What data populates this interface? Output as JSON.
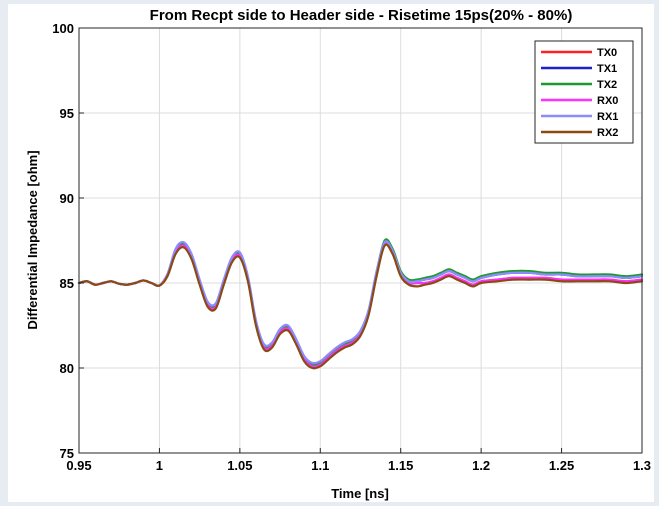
{
  "chart_data": {
    "type": "line",
    "title": "From Recpt side to Header side - Risetime 15ps(20% - 80%)",
    "xlabel": "Time [ns]",
    "ylabel": "Differential Impedance [ohm]",
    "xlim": [
      0.95,
      1.3
    ],
    "ylim": [
      75,
      100
    ],
    "xticks": [
      0.95,
      1,
      1.05,
      1.1,
      1.15,
      1.2,
      1.25,
      1.3
    ],
    "xtick_labels": [
      "0.95",
      "1",
      "1.05",
      "1.1",
      "1.15",
      "1.2",
      "1.25",
      "1.3"
    ],
    "yticks": [
      75,
      80,
      85,
      90,
      95,
      100
    ],
    "ytick_labels": [
      "75",
      "80",
      "85",
      "90",
      "95",
      "100"
    ],
    "grid": true,
    "legend_position": "top-right",
    "series": [
      {
        "name": "TX0",
        "color": "#ff2020",
        "x": [
          0.95,
          0.955,
          0.96,
          0.965,
          0.97,
          0.975,
          0.98,
          0.985,
          0.99,
          0.995,
          1.0,
          1.005,
          1.01,
          1.015,
          1.02,
          1.025,
          1.03,
          1.035,
          1.04,
          1.045,
          1.05,
          1.055,
          1.06,
          1.065,
          1.07,
          1.075,
          1.08,
          1.085,
          1.09,
          1.095,
          1.1,
          1.105,
          1.11,
          1.115,
          1.12,
          1.125,
          1.13,
          1.135,
          1.14,
          1.145,
          1.15,
          1.155,
          1.16,
          1.165,
          1.17,
          1.175,
          1.18,
          1.185,
          1.19,
          1.195,
          1.2,
          1.21,
          1.22,
          1.23,
          1.24,
          1.25,
          1.26,
          1.27,
          1.28,
          1.29,
          1.3
        ],
        "y": [
          85.0,
          85.1,
          84.9,
          85.0,
          85.1,
          84.95,
          84.9,
          85.0,
          85.15,
          85.0,
          84.85,
          85.5,
          86.8,
          87.2,
          86.5,
          85.0,
          83.7,
          83.6,
          85.0,
          86.3,
          86.6,
          85.2,
          82.6,
          81.2,
          81.3,
          82.1,
          82.3,
          81.5,
          80.5,
          80.1,
          80.2,
          80.6,
          81.0,
          81.3,
          81.5,
          82.0,
          83.2,
          85.5,
          87.3,
          86.8,
          85.5,
          85.0,
          85.0,
          85.0,
          85.1,
          85.3,
          85.5,
          85.3,
          85.1,
          84.9,
          85.1,
          85.2,
          85.3,
          85.3,
          85.3,
          85.2,
          85.2,
          85.2,
          85.2,
          85.1,
          85.2
        ]
      },
      {
        "name": "TX1",
        "color": "#1f1fd0",
        "x": [
          0.95,
          0.955,
          0.96,
          0.965,
          0.97,
          0.975,
          0.98,
          0.985,
          0.99,
          0.995,
          1.0,
          1.005,
          1.01,
          1.015,
          1.02,
          1.025,
          1.03,
          1.035,
          1.04,
          1.045,
          1.05,
          1.055,
          1.06,
          1.065,
          1.07,
          1.075,
          1.08,
          1.085,
          1.09,
          1.095,
          1.1,
          1.105,
          1.11,
          1.115,
          1.12,
          1.125,
          1.13,
          1.135,
          1.14,
          1.145,
          1.15,
          1.155,
          1.16,
          1.165,
          1.17,
          1.175,
          1.18,
          1.185,
          1.19,
          1.195,
          1.2,
          1.21,
          1.22,
          1.23,
          1.24,
          1.25,
          1.26,
          1.27,
          1.28,
          1.29,
          1.3
        ],
        "y": [
          85.0,
          85.1,
          84.9,
          85.0,
          85.1,
          84.95,
          84.9,
          85.0,
          85.15,
          85.0,
          84.85,
          85.5,
          86.9,
          87.3,
          86.6,
          85.1,
          83.8,
          83.7,
          85.1,
          86.4,
          86.7,
          85.3,
          82.7,
          81.3,
          81.4,
          82.2,
          82.4,
          81.6,
          80.6,
          80.2,
          80.3,
          80.7,
          81.1,
          81.4,
          81.6,
          82.1,
          83.3,
          85.6,
          87.4,
          86.9,
          85.6,
          85.1,
          85.1,
          85.2,
          85.3,
          85.5,
          85.7,
          85.5,
          85.3,
          85.1,
          85.3,
          85.5,
          85.6,
          85.6,
          85.5,
          85.5,
          85.4,
          85.4,
          85.4,
          85.3,
          85.4
        ]
      },
      {
        "name": "TX2",
        "color": "#1f9a2a",
        "x": [
          0.95,
          0.955,
          0.96,
          0.965,
          0.97,
          0.975,
          0.98,
          0.985,
          0.99,
          0.995,
          1.0,
          1.005,
          1.01,
          1.015,
          1.02,
          1.025,
          1.03,
          1.035,
          1.04,
          1.045,
          1.05,
          1.055,
          1.06,
          1.065,
          1.07,
          1.075,
          1.08,
          1.085,
          1.09,
          1.095,
          1.1,
          1.105,
          1.11,
          1.115,
          1.12,
          1.125,
          1.13,
          1.135,
          1.14,
          1.145,
          1.15,
          1.155,
          1.16,
          1.165,
          1.17,
          1.175,
          1.18,
          1.185,
          1.19,
          1.195,
          1.2,
          1.21,
          1.22,
          1.23,
          1.24,
          1.25,
          1.26,
          1.27,
          1.28,
          1.29,
          1.3
        ],
        "y": [
          85.0,
          85.1,
          84.9,
          85.0,
          85.1,
          84.95,
          84.9,
          85.0,
          85.15,
          85.0,
          84.85,
          85.5,
          86.9,
          87.3,
          86.6,
          85.1,
          83.8,
          83.7,
          85.1,
          86.4,
          86.7,
          85.3,
          82.7,
          81.3,
          81.4,
          82.2,
          82.4,
          81.6,
          80.6,
          80.2,
          80.3,
          80.7,
          81.1,
          81.4,
          81.6,
          82.1,
          83.3,
          85.6,
          87.5,
          87.0,
          85.7,
          85.2,
          85.2,
          85.3,
          85.4,
          85.6,
          85.8,
          85.6,
          85.4,
          85.2,
          85.4,
          85.6,
          85.7,
          85.7,
          85.6,
          85.6,
          85.5,
          85.5,
          85.5,
          85.4,
          85.5
        ]
      },
      {
        "name": "RX0",
        "color": "#ff30ff",
        "x": [
          0.95,
          0.955,
          0.96,
          0.965,
          0.97,
          0.975,
          0.98,
          0.985,
          0.99,
          0.995,
          1.0,
          1.005,
          1.01,
          1.015,
          1.02,
          1.025,
          1.03,
          1.035,
          1.04,
          1.045,
          1.05,
          1.055,
          1.06,
          1.065,
          1.07,
          1.075,
          1.08,
          1.085,
          1.09,
          1.095,
          1.1,
          1.105,
          1.11,
          1.115,
          1.12,
          1.125,
          1.13,
          1.135,
          1.14,
          1.145,
          1.15,
          1.155,
          1.16,
          1.165,
          1.17,
          1.175,
          1.18,
          1.185,
          1.19,
          1.195,
          1.2,
          1.21,
          1.22,
          1.23,
          1.24,
          1.25,
          1.26,
          1.27,
          1.28,
          1.29,
          1.3
        ],
        "y": [
          85.0,
          85.1,
          84.9,
          85.0,
          85.1,
          84.95,
          84.9,
          85.0,
          85.15,
          85.0,
          84.85,
          85.5,
          86.8,
          87.2,
          86.5,
          85.0,
          83.7,
          83.6,
          85.0,
          86.3,
          86.6,
          85.2,
          82.6,
          81.2,
          81.3,
          82.1,
          82.3,
          81.5,
          80.5,
          80.1,
          80.2,
          80.6,
          81.0,
          81.3,
          81.5,
          82.0,
          83.2,
          85.5,
          87.3,
          86.8,
          85.5,
          85.0,
          85.0,
          85.0,
          85.1,
          85.3,
          85.5,
          85.3,
          85.1,
          84.9,
          85.1,
          85.2,
          85.3,
          85.3,
          85.3,
          85.2,
          85.2,
          85.2,
          85.2,
          85.1,
          85.2
        ]
      },
      {
        "name": "RX1",
        "color": "#8c8cff",
        "x": [
          0.95,
          0.955,
          0.96,
          0.965,
          0.97,
          0.975,
          0.98,
          0.985,
          0.99,
          0.995,
          1.0,
          1.005,
          1.01,
          1.015,
          1.02,
          1.025,
          1.03,
          1.035,
          1.04,
          1.045,
          1.05,
          1.055,
          1.06,
          1.065,
          1.07,
          1.075,
          1.08,
          1.085,
          1.09,
          1.095,
          1.1,
          1.105,
          1.11,
          1.115,
          1.12,
          1.125,
          1.13,
          1.135,
          1.14,
          1.145,
          1.15,
          1.155,
          1.16,
          1.165,
          1.17,
          1.175,
          1.18,
          1.185,
          1.19,
          1.195,
          1.2,
          1.21,
          1.22,
          1.23,
          1.24,
          1.25,
          1.26,
          1.27,
          1.28,
          1.29,
          1.3
        ],
        "y": [
          85.0,
          85.1,
          84.9,
          85.0,
          85.1,
          84.95,
          84.9,
          85.0,
          85.15,
          85.0,
          84.85,
          85.5,
          87.0,
          87.4,
          86.7,
          85.2,
          83.9,
          83.8,
          85.2,
          86.5,
          86.8,
          85.4,
          82.8,
          81.4,
          81.5,
          82.3,
          82.5,
          81.7,
          80.7,
          80.3,
          80.4,
          80.8,
          81.2,
          81.5,
          81.7,
          82.2,
          83.4,
          85.7,
          87.4,
          86.9,
          85.6,
          85.1,
          85.1,
          85.2,
          85.3,
          85.5,
          85.7,
          85.5,
          85.3,
          85.1,
          85.3,
          85.5,
          85.6,
          85.6,
          85.5,
          85.5,
          85.4,
          85.4,
          85.4,
          85.3,
          85.4
        ]
      },
      {
        "name": "RX2",
        "color": "#8b4a12",
        "x": [
          0.95,
          0.955,
          0.96,
          0.965,
          0.97,
          0.975,
          0.98,
          0.985,
          0.99,
          0.995,
          1.0,
          1.005,
          1.01,
          1.015,
          1.02,
          1.025,
          1.03,
          1.035,
          1.04,
          1.045,
          1.05,
          1.055,
          1.06,
          1.065,
          1.07,
          1.075,
          1.08,
          1.085,
          1.09,
          1.095,
          1.1,
          1.105,
          1.11,
          1.115,
          1.12,
          1.125,
          1.13,
          1.135,
          1.14,
          1.145,
          1.15,
          1.155,
          1.16,
          1.165,
          1.17,
          1.175,
          1.18,
          1.185,
          1.19,
          1.195,
          1.2,
          1.21,
          1.22,
          1.23,
          1.24,
          1.25,
          1.26,
          1.27,
          1.28,
          1.29,
          1.3
        ],
        "y": [
          85.0,
          85.1,
          84.9,
          85.0,
          85.1,
          84.95,
          84.9,
          85.0,
          85.15,
          85.0,
          84.85,
          85.4,
          86.7,
          87.1,
          86.4,
          84.9,
          83.6,
          83.5,
          84.9,
          86.2,
          86.5,
          85.1,
          82.5,
          81.1,
          81.2,
          82.0,
          82.2,
          81.4,
          80.4,
          80.0,
          80.1,
          80.5,
          80.9,
          81.2,
          81.4,
          81.9,
          83.1,
          85.4,
          87.2,
          86.7,
          85.4,
          84.9,
          84.8,
          84.9,
          85.0,
          85.2,
          85.4,
          85.2,
          85.0,
          84.8,
          85.0,
          85.1,
          85.2,
          85.2,
          85.2,
          85.1,
          85.1,
          85.1,
          85.1,
          85.0,
          85.1
        ]
      }
    ]
  }
}
